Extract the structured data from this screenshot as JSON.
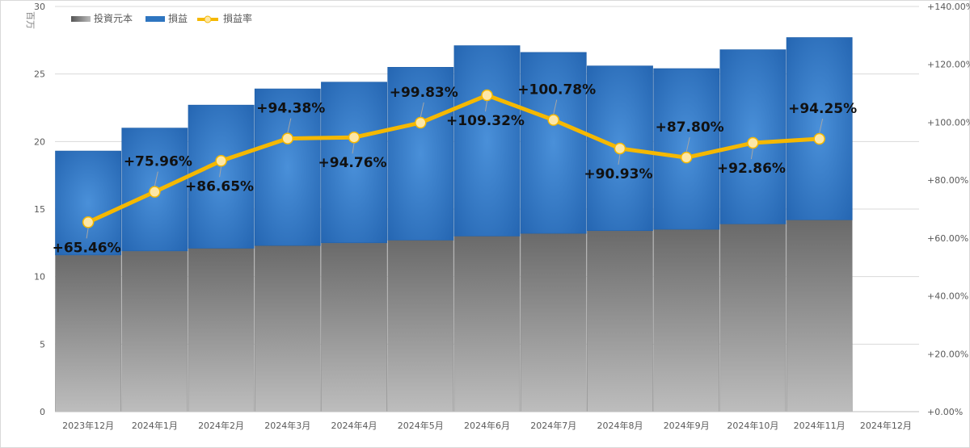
{
  "chart_data": {
    "type": "bar",
    "stacked": true,
    "categories": [
      "2023年12月",
      "2024年1月",
      "2024年2月",
      "2024年3月",
      "2024年4月",
      "2024年5月",
      "2024年6月",
      "2024年7月",
      "2024年8月",
      "2024年9月",
      "2024年10月",
      "2024年11月",
      "2024年12月"
    ],
    "series": [
      {
        "name": "投資元本",
        "kind": "bar",
        "axis": "left",
        "color": "#7f7f7f",
        "values": [
          11.6,
          11.9,
          12.1,
          12.3,
          12.5,
          12.7,
          13.0,
          13.2,
          13.4,
          13.5,
          13.9,
          14.2,
          null
        ]
      },
      {
        "name": "損益",
        "kind": "bar",
        "axis": "left",
        "color": "#2e75c0",
        "values": [
          7.7,
          9.1,
          10.6,
          11.6,
          11.9,
          12.8,
          14.1,
          13.4,
          12.2,
          11.9,
          12.9,
          13.5,
          null
        ]
      },
      {
        "name": "損益率",
        "kind": "line",
        "axis": "right",
        "color": "#f5b800",
        "values": [
          65.46,
          75.96,
          86.65,
          94.38,
          94.76,
          99.83,
          109.32,
          100.78,
          90.93,
          87.8,
          92.86,
          94.25,
          null
        ],
        "labels": [
          "+65.46%",
          "+75.96%",
          "+86.65%",
          "+94.38%",
          "+94.76%",
          "+99.83%",
          "+109.32%",
          "+100.78%",
          "+90.93%",
          "+87.80%",
          "+92.86%",
          "+94.25%",
          ""
        ]
      }
    ],
    "y_left": {
      "unit_label": "百万",
      "ylim": [
        0,
        30
      ],
      "ticks": [
        0,
        5,
        10,
        15,
        20,
        25,
        30
      ],
      "tick_labels": [
        "0",
        "5",
        "10",
        "15",
        "20",
        "25",
        "30"
      ]
    },
    "y_right": {
      "ylim": [
        0,
        140
      ],
      "ticks": [
        0,
        20,
        40,
        60,
        80,
        100,
        120,
        140
      ],
      "tick_labels": [
        "+0.00%",
        "+20.00%",
        "+40.00%",
        "+60.00%",
        "+80.00%",
        "+100.00%",
        "+120.00%",
        "+140.00%"
      ]
    },
    "legend": {
      "position": "top-left",
      "items": [
        "投資元本",
        "損益",
        "損益率"
      ]
    },
    "grid": true
  }
}
